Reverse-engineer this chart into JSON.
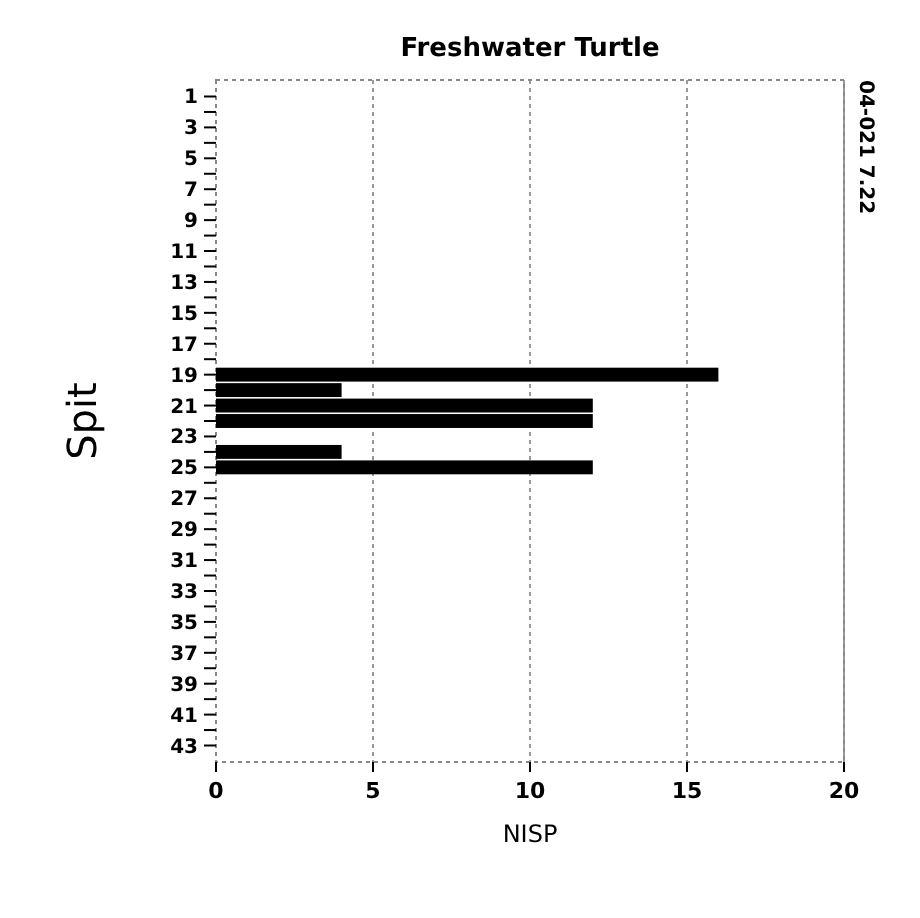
{
  "chart_data": {
    "type": "bar",
    "orientation": "horizontal",
    "title": "Freshwater Turtle",
    "xlabel": "NISP",
    "ylabel": "Spit",
    "categories": [
      "1",
      null,
      "3",
      null,
      "5",
      null,
      "7",
      null,
      "9",
      null,
      "11",
      null,
      "13",
      null,
      "15",
      null,
      "17",
      null,
      "19",
      null,
      "21",
      null,
      "23",
      null,
      "25",
      null,
      "27",
      null,
      "29",
      null,
      "31",
      null,
      "33",
      null,
      "35",
      null,
      "37",
      null,
      "39",
      null,
      "41",
      null,
      "43"
    ],
    "values": [
      null,
      null,
      null,
      null,
      null,
      null,
      null,
      null,
      null,
      null,
      null,
      null,
      null,
      null,
      null,
      null,
      null,
      null,
      16,
      4,
      12,
      12,
      null,
      4,
      12,
      null,
      null,
      null,
      null,
      null,
      null,
      null,
      null,
      null,
      null,
      null,
      null,
      null,
      null,
      null,
      null,
      null,
      null
    ],
    "color": "#000000",
    "xlim": [
      0,
      20
    ],
    "xticks": [
      0,
      5,
      10,
      15,
      20
    ],
    "grid": "x",
    "annotations": [
      "04-021 7.22"
    ]
  }
}
